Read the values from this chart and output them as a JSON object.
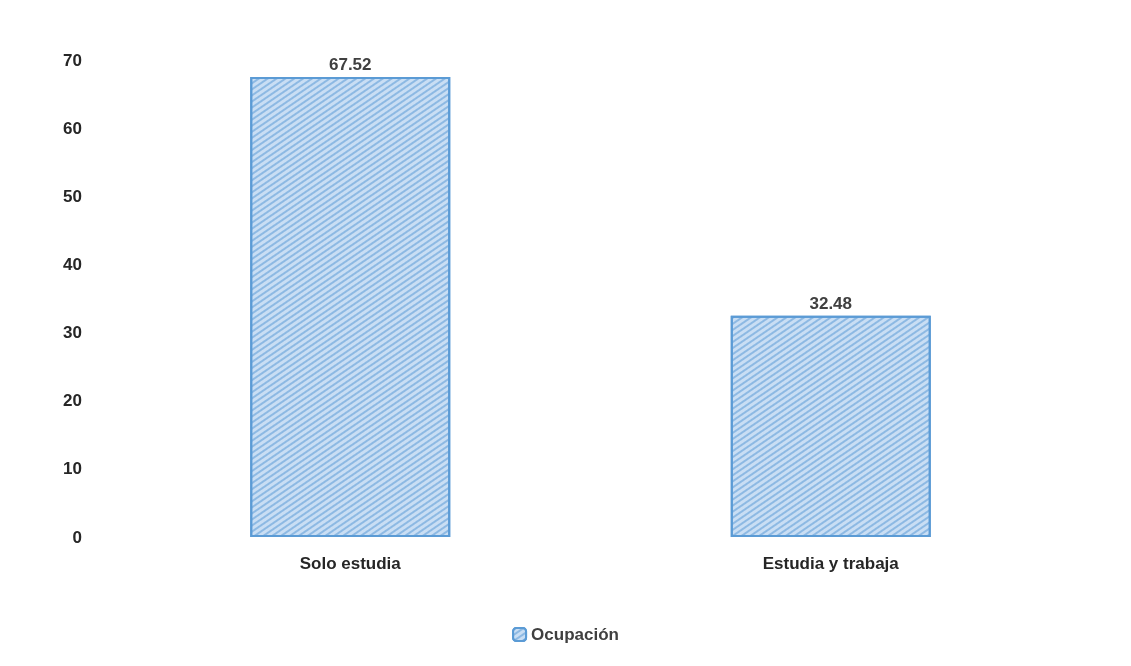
{
  "chart_data": {
    "type": "bar",
    "categories": [
      "Solo estudia",
      "Estudia y trabaja"
    ],
    "series": [
      {
        "name": "Ocupación",
        "color": "#c9def4",
        "values": [
          67.52,
          32.48
        ]
      }
    ],
    "ylim": [
      0,
      70
    ],
    "yticks": [
      0,
      10,
      20,
      30,
      40,
      50,
      60,
      70
    ],
    "data_labels": true,
    "grid": false,
    "legend": "bottom"
  }
}
